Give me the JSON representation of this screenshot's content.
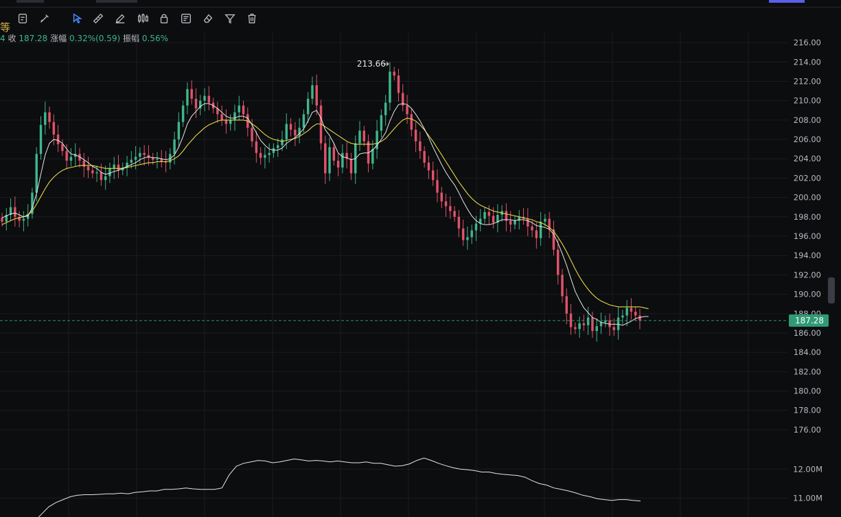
{
  "toolbar": {
    "fragment_label": "等",
    "tools": [
      {
        "name": "cursor-icon"
      },
      {
        "name": "magnet-icon"
      },
      {
        "name": "brush-icon"
      },
      {
        "name": "rectangle-icon"
      },
      {
        "name": "ruler-icon"
      },
      {
        "name": "pen-icon"
      },
      {
        "name": "candles-icon"
      },
      {
        "name": "lock-icon"
      },
      {
        "name": "note-icon"
      },
      {
        "name": "eraser-icon"
      },
      {
        "name": "filter-icon"
      },
      {
        "name": "trash-icon"
      }
    ]
  },
  "quote_bar": {
    "fragment": "4",
    "close_label": "收",
    "close_value": "187.28",
    "change_label": "涨幅",
    "change_value": "0.32%(0.59)",
    "amplitude_label": "振幅",
    "amplitude_value": "0.56%"
  },
  "colors": {
    "up": "#3fb68b",
    "down": "#e0536a",
    "ma_fast": "#e8e8e8",
    "ma_slow": "#e6d94a",
    "price_tag": "#2f9a74"
  },
  "chart_data": {
    "type": "candlestick",
    "title": "",
    "xlabel": "",
    "ylabel": "",
    "ylim": [
      175,
      217
    ],
    "y_ticks": [
      "216.00",
      "214.00",
      "212.00",
      "210.00",
      "208.00",
      "206.00",
      "204.00",
      "202.00",
      "200.00",
      "198.00",
      "196.00",
      "194.00",
      "192.00",
      "190.00",
      "188.00",
      "186.00",
      "184.00",
      "182.00",
      "180.00",
      "178.00",
      "176.00"
    ],
    "last_price": "187.28",
    "high_marker": {
      "label": "213.66",
      "value": 213.66
    },
    "close_series": [
      197.5,
      198.2,
      199.0,
      198.0,
      197.6,
      197.8,
      198.3,
      200.5,
      204.5,
      207.5,
      208.8,
      207.8,
      206.5,
      205.5,
      204.8,
      203.8,
      204.2,
      204.5,
      203.8,
      203.2,
      202.8,
      202.5,
      202.6,
      201.8,
      202.2,
      203.0,
      203.4,
      202.8,
      203.1,
      203.6,
      203.9,
      204.2,
      204.6,
      204.4,
      204.1,
      203.9,
      204.0,
      203.7,
      203.6,
      204.5,
      206.0,
      207.8,
      209.5,
      211.2,
      210.2,
      209.2,
      210.0,
      210.5,
      209.8,
      209.2,
      208.6,
      208.0,
      207.6,
      208.0,
      208.8,
      209.5,
      208.6,
      207.2,
      205.8,
      204.6,
      204.1,
      204.4,
      204.6,
      205.1,
      205.4,
      206.0,
      207.6,
      207.0,
      206.4,
      207.2,
      208.6,
      210.2,
      211.6,
      209.5,
      205.6,
      202.5,
      205.2,
      203.8,
      203.1,
      204.6,
      204.0,
      202.5,
      205.6,
      206.9,
      205.8,
      203.5,
      205.0,
      206.9,
      208.5,
      209.8,
      213.0,
      212.6,
      210.8,
      209.5,
      208.6,
      207.0,
      205.8,
      204.8,
      203.6,
      202.8,
      201.8,
      200.5,
      199.6,
      199.1,
      198.6,
      198.0,
      196.8,
      195.6,
      195.9,
      196.6,
      197.3,
      197.8,
      198.5,
      198.1,
      197.4,
      198.2,
      198.6,
      197.6,
      197.2,
      197.6,
      198.0,
      197.8,
      197.0,
      196.6,
      195.8,
      197.5,
      197.8,
      196.7,
      194.6,
      192.0,
      189.8,
      188.0,
      186.6,
      186.4,
      187.0,
      186.8,
      187.6,
      186.2,
      186.7,
      187.1,
      187.3,
      186.6,
      186.3,
      187.6,
      187.8,
      188.6,
      188.2,
      187.8,
      187.3
    ],
    "ma_fast": [
      197.9,
      198.1,
      198.3,
      198.4,
      198.2,
      198.0,
      198.1,
      198.9,
      200.4,
      202.4,
      204.4,
      205.6,
      206.0,
      205.9,
      205.6,
      205.0,
      204.5,
      204.4,
      204.2,
      203.9,
      203.6,
      203.2,
      203.0,
      202.6,
      202.4,
      202.5,
      202.7,
      202.8,
      203.0,
      203.2,
      203.4,
      203.6,
      203.9,
      204.1,
      204.2,
      204.1,
      204.1,
      204.0,
      203.9,
      204.0,
      204.4,
      205.2,
      206.3,
      207.6,
      208.4,
      208.9,
      209.4,
      209.7,
      209.7,
      209.5,
      209.2,
      208.8,
      208.4,
      208.2,
      208.2,
      208.4,
      208.4,
      208.2,
      207.5,
      206.7,
      205.9,
      205.4,
      205.0,
      204.9,
      204.9,
      205.1,
      205.6,
      205.9,
      206.2,
      206.6,
      207.1,
      207.9,
      208.8,
      209.0,
      208.2,
      207.0,
      206.4,
      205.6,
      204.6,
      204.2,
      204.1,
      203.9,
      204.0,
      204.5,
      204.6,
      204.6,
      204.9,
      205.4,
      206.0,
      206.7,
      207.9,
      208.9,
      209.6,
      209.7,
      209.6,
      209.2,
      208.6,
      207.9,
      207.1,
      206.2,
      205.2,
      204.3,
      203.4,
      202.6,
      201.9,
      201.3,
      200.5,
      199.6,
      198.8,
      198.1,
      197.6,
      197.3,
      197.2,
      197.2,
      197.3,
      197.5,
      197.7,
      197.7,
      197.7,
      197.6,
      197.7,
      197.7,
      197.6,
      197.4,
      197.1,
      197.0,
      196.9,
      196.7,
      196.2,
      195.3,
      194.2,
      193.0,
      191.6,
      190.3,
      189.4,
      188.6,
      188.1,
      187.6,
      187.4,
      187.1,
      187.0,
      186.9,
      186.9,
      186.9,
      186.8,
      187.0,
      187.2,
      187.5,
      187.6,
      187.7,
      187.7
    ],
    "ma_slow": [
      197.2,
      197.4,
      197.6,
      197.8,
      197.9,
      198.0,
      198.2,
      198.6,
      199.3,
      200.1,
      200.9,
      201.6,
      202.1,
      202.5,
      202.8,
      203.0,
      203.1,
      203.2,
      203.3,
      203.3,
      203.3,
      203.3,
      203.2,
      203.1,
      203.0,
      203.0,
      203.0,
      203.0,
      203.0,
      203.1,
      203.2,
      203.3,
      203.4,
      203.5,
      203.6,
      203.6,
      203.7,
      203.7,
      203.7,
      203.8,
      204.0,
      204.3,
      204.8,
      205.4,
      205.9,
      206.4,
      206.8,
      207.2,
      207.5,
      207.7,
      207.9,
      208.0,
      208.0,
      208.0,
      208.0,
      208.0,
      208.0,
      207.9,
      207.6,
      207.3,
      206.9,
      206.5,
      206.2,
      206.0,
      205.9,
      205.8,
      205.9,
      206.0,
      206.1,
      206.3,
      206.6,
      206.9,
      207.3,
      207.6,
      207.6,
      207.3,
      207.0,
      206.7,
      206.4,
      206.1,
      205.8,
      205.6,
      205.5,
      205.5,
      205.5,
      205.5,
      205.5,
      205.6,
      205.8,
      206.1,
      206.6,
      207.1,
      207.6,
      208.0,
      208.2,
      208.1,
      207.9,
      207.5,
      207.0,
      206.4,
      205.8,
      205.1,
      204.4,
      203.7,
      203.0,
      202.3,
      201.6,
      201.0,
      200.4,
      199.9,
      199.5,
      199.2,
      199.0,
      198.8,
      198.6,
      198.5,
      198.4,
      198.3,
      198.2,
      198.1,
      198.0,
      197.9,
      197.8,
      197.7,
      197.5,
      197.4,
      197.2,
      196.9,
      196.5,
      195.9,
      195.2,
      194.4,
      193.5,
      192.6,
      191.8,
      191.1,
      190.5,
      190.0,
      189.6,
      189.3,
      189.1,
      188.9,
      188.8,
      188.7,
      188.7,
      188.7,
      188.7,
      188.7,
      188.7,
      188.6,
      188.5
    ],
    "volume_panel": {
      "y_ticks": [
        "12.00M",
        "11.00M"
      ],
      "ylim": [
        10.35,
        12.55
      ],
      "values": [
        10.2,
        10.45,
        10.7,
        10.85,
        10.95,
        11.05,
        11.1,
        11.12,
        11.12,
        11.13,
        11.15,
        11.15,
        11.17,
        11.15,
        11.2,
        11.22,
        11.25,
        11.25,
        11.3,
        11.3,
        11.32,
        11.35,
        11.32,
        11.3,
        11.3,
        11.3,
        11.35,
        11.8,
        12.1,
        12.2,
        12.25,
        12.3,
        12.28,
        12.22,
        12.25,
        12.3,
        12.35,
        12.32,
        12.28,
        12.3,
        12.28,
        12.25,
        12.28,
        12.25,
        12.22,
        12.22,
        12.25,
        12.2,
        12.2,
        12.15,
        12.1,
        12.12,
        12.18,
        12.3,
        12.38,
        12.3,
        12.2,
        12.12,
        12.05,
        12.0,
        11.98,
        11.95,
        11.9,
        11.9,
        11.85,
        11.82,
        11.8,
        11.78,
        11.72,
        11.6,
        11.5,
        11.45,
        11.35,
        11.3,
        11.25,
        11.18,
        11.1,
        11.05,
        10.98,
        10.95,
        10.92,
        10.95,
        10.95,
        10.92,
        10.9
      ]
    }
  }
}
